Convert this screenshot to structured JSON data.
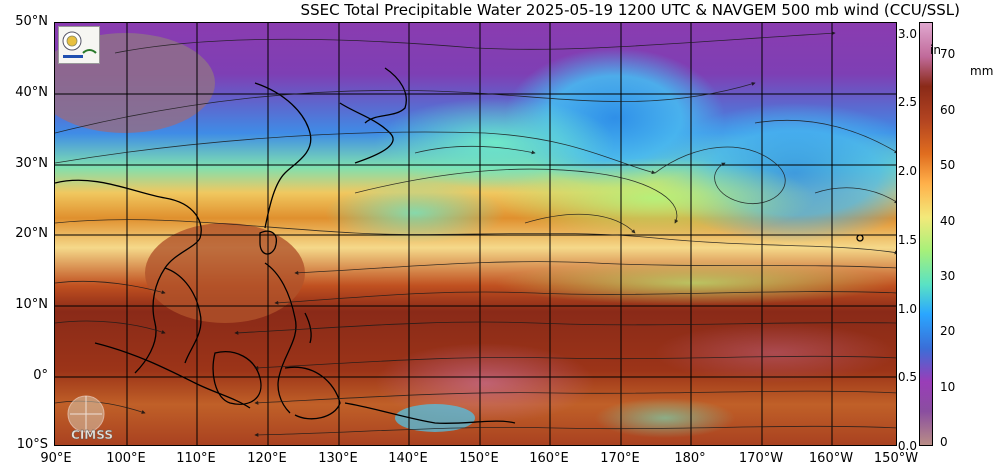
{
  "title": "SSEC Total Precipitable Water  2025-05-19 1200 UTC & NAVGEM 500 mb wind (CCU/SSL)",
  "axes": {
    "lat_labels": [
      "50°N",
      "40°N",
      "30°N",
      "20°N",
      "10°N",
      "0°",
      "10°S"
    ],
    "lon_labels": [
      "90°E",
      "100°E",
      "110°E",
      "120°E",
      "130°E",
      "140°E",
      "150°E",
      "160°E",
      "170°E",
      "180°",
      "170°W",
      "160°W",
      "150°W"
    ]
  },
  "colorbar": {
    "unit_in": "in",
    "unit_mm": "mm",
    "in_ticks": [
      "3.0",
      "2.5",
      "2.0",
      "1.5",
      "1.0",
      "0.5",
      "0.0"
    ],
    "mm_ticks": [
      "70",
      "60",
      "50",
      "40",
      "30",
      "20",
      "10",
      "0"
    ],
    "colors": [
      "#b98d86",
      "#8a4ea0",
      "#9a3db8",
      "#3a6fd8",
      "#2aa6ff",
      "#59e2c4",
      "#a6f07a",
      "#f3e97a",
      "#ffb04a",
      "#e06d1f",
      "#b34421",
      "#8a2a18",
      "#c06a9a",
      "#e0a7cf"
    ]
  },
  "logos": {
    "cimss_text": "CIMSS",
    "badge_icon": "ssec-badge-icon"
  }
}
